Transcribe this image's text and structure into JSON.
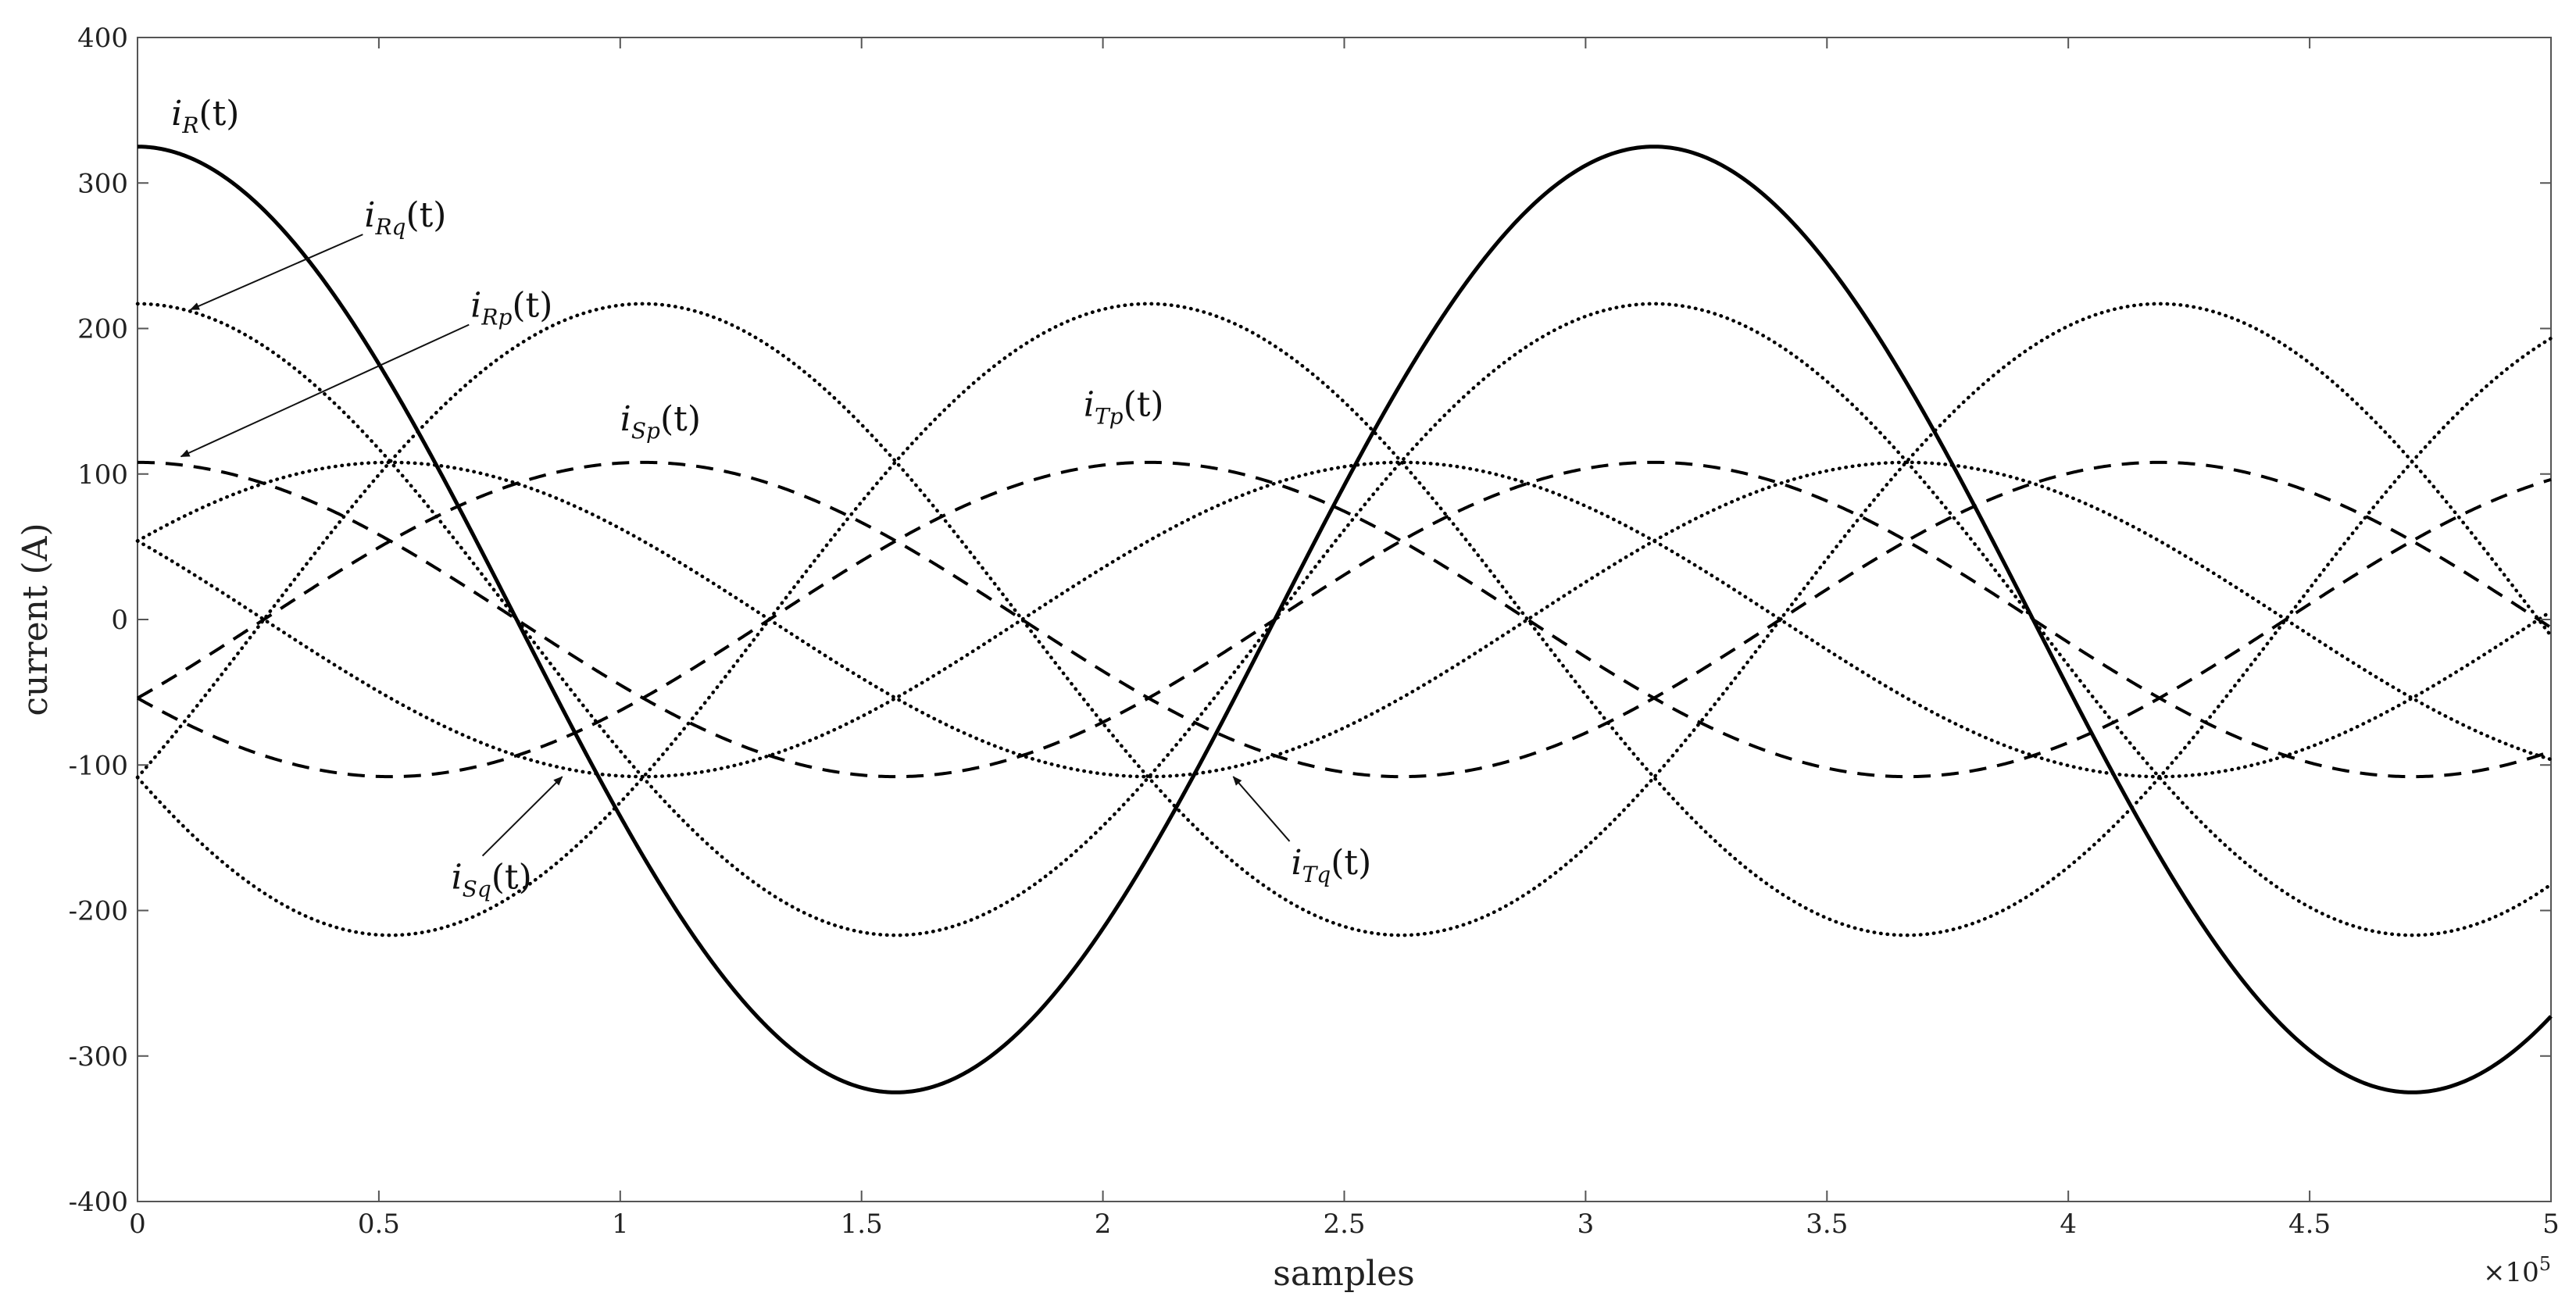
{
  "chart_data": {
    "type": "line",
    "title": "",
    "xlabel": "samples",
    "ylabel": "current (A)",
    "x_exponent_label": "×10",
    "x_exponent_power": "5",
    "xlim": [
      0,
      5
    ],
    "ylim": [
      -400,
      400
    ],
    "x_ticks": [
      0,
      0.5,
      1,
      1.5,
      2,
      2.5,
      3,
      3.5,
      4,
      4.5,
      5
    ],
    "x_tick_labels": [
      "0",
      "0.5",
      "1",
      "1.5",
      "2",
      "2.5",
      "3",
      "3.5",
      "4",
      "4.5",
      "5"
    ],
    "y_ticks": [
      -400,
      -300,
      -200,
      -100,
      0,
      100,
      200,
      300,
      400
    ],
    "y_tick_labels": [
      "-400",
      "-300",
      "-200",
      "-100",
      "0",
      "100",
      "200",
      "300",
      "400"
    ],
    "grid": false,
    "period_x": 3.1416,
    "series": [
      {
        "id": "iR",
        "style": "solid",
        "amplitude": 325,
        "phase_deg": 90
      },
      {
        "id": "iRq",
        "style": "dotted",
        "amplitude": 217,
        "phase_deg": 90
      },
      {
        "id": "iRp",
        "style": "dashed",
        "amplitude": 108,
        "phase_deg": 90
      },
      {
        "id": "iSp",
        "style": "dashed",
        "amplitude": 108,
        "phase_deg": -30
      },
      {
        "id": "iTp",
        "style": "dashed",
        "amplitude": 108,
        "phase_deg": -150
      },
      {
        "id": "iSq",
        "style": "dotted",
        "amplitude": 108,
        "phase_deg": 30
      },
      {
        "id": "iTq",
        "style": "dotted",
        "amplitude": 108,
        "phase_deg": 150
      },
      {
        "id": "iSq2",
        "style": "dotted",
        "amplitude": 217,
        "phase_deg": -30
      },
      {
        "id": "iTq2",
        "style": "dotted",
        "amplitude": 217,
        "phase_deg": -150
      }
    ],
    "annotations": [
      {
        "id": "ann-iR",
        "main": "i",
        "sub": "R",
        "suffix": "(t)",
        "x": 0.07,
        "y": 340,
        "arrow": false
      },
      {
        "id": "ann-iRq",
        "main": "i",
        "sub": "Rq",
        "suffix": "(t)",
        "x": 0.47,
        "y": 270,
        "arrow": true,
        "arrow_to_x": 0.11,
        "arrow_to_y": 213
      },
      {
        "id": "ann-iRp",
        "main": "i",
        "sub": "Rp",
        "suffix": "(t)",
        "x": 0.69,
        "y": 208,
        "arrow": true,
        "arrow_to_x": 0.09,
        "arrow_to_y": 112
      },
      {
        "id": "ann-iSp",
        "main": "i",
        "sub": "Sp",
        "suffix": "(t)",
        "x": 1.0,
        "y": 130,
        "arrow": false
      },
      {
        "id": "ann-iTp",
        "main": "i",
        "sub": "Tp",
        "suffix": "(t)",
        "x": 1.96,
        "y": 140,
        "arrow": false
      },
      {
        "id": "ann-iSq",
        "main": "i",
        "sub": "Sq",
        "suffix": "(t)",
        "x": 0.65,
        "y": -185,
        "arrow": true,
        "arrow_to_x": 0.88,
        "arrow_to_y": -108
      },
      {
        "id": "ann-iTq",
        "main": "i",
        "sub": "Tq",
        "suffix": "(t)",
        "x": 2.39,
        "y": -175,
        "arrow": true,
        "arrow_to_x": 2.27,
        "arrow_to_y": -108
      }
    ]
  }
}
